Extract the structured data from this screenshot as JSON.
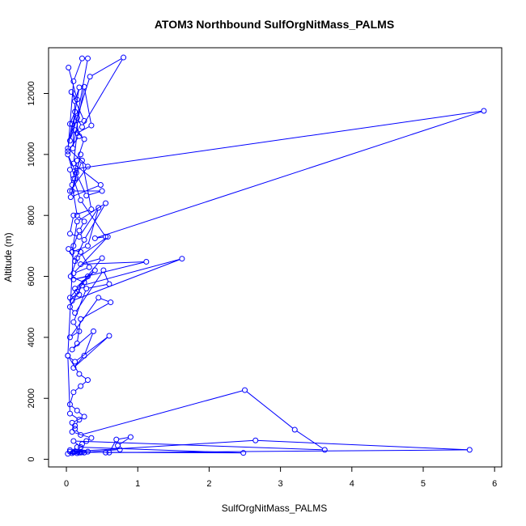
{
  "chart_data": {
    "type": "line",
    "title": "ATOM3 Northbound SulfOrgNitMass_PALMS",
    "xlabel": "SulfOrgNitMass_PALMS",
    "ylabel": "Altitude (m)",
    "xlim": [
      -0.25,
      6.1
    ],
    "ylim": [
      -250,
      13500
    ],
    "xticks": [
      0,
      1,
      2,
      3,
      4,
      5,
      6
    ],
    "yticks": [
      0,
      2000,
      4000,
      6000,
      8000,
      10000,
      12000
    ],
    "grid": false,
    "line_color": "#0000ff",
    "marker": "open-circle",
    "series": [
      {
        "x": [
          0.03,
          0.15,
          0.07,
          0.25,
          0.05,
          0.12,
          0.18,
          0.02,
          0.1,
          0.22,
          0.3,
          0.15,
          0.22,
          0.8,
          0.33,
          0.05,
          0.18,
          0.12,
          0.09,
          0.25,
          0.35,
          0.15,
          0.1,
          0.48,
          0.06,
          0.2,
          0.14,
          0.08,
          0.5,
          0.28,
          0.02,
          0.12,
          0.22,
          0.35,
          0.1,
          0.05,
          0.18,
          0.45,
          0.3,
          0.08,
          0.15,
          0.55,
          0.25,
          0.12,
          0.03,
          0.2,
          0.32,
          0.1,
          0.58,
          0.15,
          0.06,
          0.25,
          0.4,
          0.12,
          0.18,
          0.05,
          0.5,
          0.2,
          1.12,
          0.1,
          0.3,
          0.15,
          0.08,
          1.62,
          0.22,
          0.05,
          0.12,
          0.52,
          0.6,
          0.28,
          0.1,
          0.18,
          0.05,
          0.45,
          0.62,
          0.2,
          0.15,
          0.08,
          0.38,
          0.25,
          0.1,
          0.6,
          0.12,
          0.02,
          0.18,
          0.3,
          0.2,
          0.1,
          0.05,
          0.15,
          0.25,
          0.08,
          0.12,
          0.2,
          2.5,
          3.2,
          3.62,
          0.1,
          0.2,
          0.15,
          0.05,
          0.25,
          0.12,
          0.08,
          0.3,
          0.18,
          0.1,
          0.02,
          0.15,
          0.22,
          0.12,
          0.05,
          2.65,
          5.65,
          0.55,
          0.6,
          0.7,
          0.9,
          0.72,
          0.75,
          0.2,
          0.1,
          2.48,
          0.15,
          0.22,
          0.28,
          0.35,
          0.08,
          0.12,
          0.18,
          0.05,
          0.02,
          0.1,
          0.18,
          0.25,
          0.15,
          0.08,
          0.05,
          5.85,
          0.4,
          0.55,
          0.2,
          0.1,
          0.15,
          0.25,
          0.12,
          0.08,
          0.02,
          0.3,
          0.05
        ],
        "y": [
          12850,
          11800,
          12050,
          11100,
          11000,
          11400,
          10600,
          10100,
          12400,
          13150,
          13150,
          11200,
          10900,
          13180,
          12550,
          10450,
          12200,
          11750,
          10200,
          12220,
          10950,
          10700,
          9700,
          9000,
          8600,
          10000,
          9400,
          8800,
          8800,
          8650,
          10000,
          9200,
          9800,
          8200,
          8000,
          7400,
          7300,
          8250,
          7000,
          6800,
          7800,
          8400,
          7200,
          6500,
          6900,
          6800,
          6300,
          6100,
          7300,
          6600,
          6000,
          5800,
          6200,
          5600,
          5400,
          5300,
          6600,
          6400,
          6480,
          5900,
          6000,
          5500,
          5200,
          6580,
          5700,
          5000,
          4800,
          6200,
          5750,
          5600,
          4500,
          4200,
          4000,
          5300,
          5150,
          4600,
          3800,
          3600,
          4200,
          3400,
          3000,
          4050,
          3200,
          3400,
          2800,
          2600,
          2400,
          2200,
          1800,
          1600,
          1400,
          1200,
          1000,
          800,
          2270,
          970,
          310,
          600,
          400,
          250,
          300,
          220,
          250,
          200,
          250,
          220,
          230,
          180,
          200,
          230,
          260,
          250,
          620,
          310,
          220,
          220,
          650,
          730,
          450,
          320,
          220,
          230,
          210,
          400,
          500,
          600,
          700,
          900,
          1100,
          1300,
          1500,
          3400,
          7000,
          7500,
          7800,
          8000,
          9000,
          9500,
          11430,
          7250,
          7300,
          8500,
          9200,
          9800,
          10500,
          10800,
          11000,
          10200,
          9600,
          8800
        ]
      }
    ]
  }
}
